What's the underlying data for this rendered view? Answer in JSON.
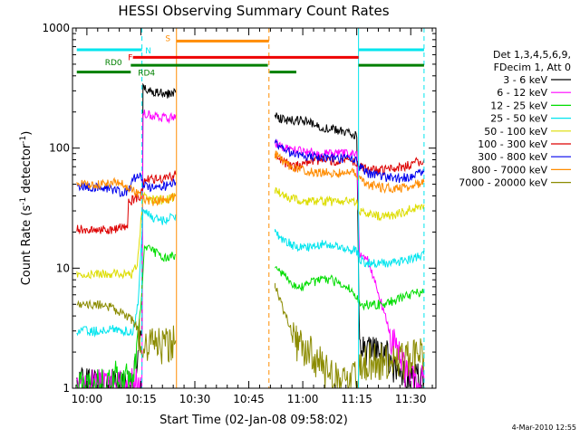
{
  "chart_data": {
    "type": "line",
    "title": "HESSI Observing Summary Count Rates",
    "xlabel": "Start Time (02-Jan-08 09:58:02)",
    "ylabel_main": "Count Rate (s",
    "ylabel_sup1": "-1",
    "ylabel_mid": " detector",
    "ylabel_sup2": "-1",
    "ylabel_end": ")",
    "yscale": "log",
    "ylim": [
      1,
      1000
    ],
    "xlim_minutes": [
      -4,
      97
    ],
    "x_tick_labels": [
      "10:00",
      "10:15",
      "10:30",
      "10:45",
      "11:00",
      "11:15",
      "11:30"
    ],
    "x_tick_minutes": [
      0,
      15,
      30,
      45,
      60,
      75,
      90
    ],
    "y_tick_labels": [
      "1",
      "10",
      "100",
      "1000"
    ],
    "y_tick_values": [
      1,
      10,
      100,
      1000
    ],
    "legend_header": [
      "Det 1,3,4,5,6,9,",
      "FDecim 1, Att 0"
    ],
    "legend_position": "right",
    "footer_date": "4-Mar-2010 12:55",
    "flag_labels": {
      "N": "N",
      "S": "S",
      "F": "F",
      "RD0": "RD0",
      "RD4": "RD4"
    },
    "colors": {
      "frame": "#000000",
      "text": "#000000",
      "N": "#00e5ee",
      "S": "#ff8c00",
      "F": "#ee0000",
      "RD": "#008000"
    },
    "verticals": [
      {
        "minute": 15.3,
        "color": "#00e5ee",
        "style": "dashed"
      },
      {
        "minute": 24.9,
        "color": "#ff8c00",
        "style": "solid"
      },
      {
        "minute": 50.6,
        "color": "#ff8c00",
        "style": "dashed"
      },
      {
        "minute": 75.5,
        "color": "#00e5ee",
        "style": "solid"
      },
      {
        "minute": 93.7,
        "color": "#00e5ee",
        "style": "dashed"
      }
    ],
    "flags": [
      {
        "name": "N",
        "y": 660,
        "color": "#00e5ee",
        "segments": [
          [
            -2.8,
            15.3
          ],
          [
            75.5,
            93.7
          ]
        ]
      },
      {
        "name": "S",
        "y": 780,
        "color": "#ff8c00",
        "segments": [
          [
            24.9,
            50.6
          ]
        ]
      },
      {
        "name": "F",
        "y": 570,
        "color": "#ee0000",
        "segments": [
          [
            12.8,
            75.5
          ]
        ]
      },
      {
        "name": "RD0",
        "y": 490,
        "color": "#008000",
        "segments": [
          [
            12.2,
            50.3
          ],
          [
            75.5,
            93.7
          ]
        ]
      },
      {
        "name": "RD4",
        "y": 430,
        "color": "#008000",
        "segments": [
          [
            -2.8,
            12.2
          ],
          [
            50.8,
            58.2
          ]
        ]
      }
    ],
    "series": [
      {
        "name": "3 - 6 keV",
        "color": "#000000",
        "points": [
          [
            -2.8,
            1.1
          ],
          [
            12.8,
            1.1
          ],
          [
            14.2,
            2
          ],
          [
            15.3,
            2.5
          ],
          [
            15.6,
            320
          ],
          [
            17,
            300
          ],
          [
            20,
            290
          ],
          [
            22,
            280
          ],
          [
            24,
            290
          ],
          [
            24.7,
            290
          ],
          [
            52.3,
            190
          ],
          [
            55,
            170
          ],
          [
            60,
            170
          ],
          [
            65,
            150
          ],
          [
            70,
            140
          ],
          [
            75,
            130
          ],
          [
            75.8,
            2
          ],
          [
            78,
            2
          ],
          [
            80,
            2
          ],
          [
            83,
            2
          ],
          [
            85,
            1.6
          ],
          [
            87,
            1.3
          ],
          [
            92,
            1.2
          ],
          [
            93.7,
            1.2
          ]
        ]
      },
      {
        "name": "6 - 12 keV",
        "color": "#ff00ff",
        "points": [
          [
            -2.8,
            1.05
          ],
          [
            15.3,
            1.1
          ],
          [
            15.6,
            200
          ],
          [
            17,
            190
          ],
          [
            20,
            185
          ],
          [
            23,
            180
          ],
          [
            24.7,
            190
          ],
          [
            52.3,
            110
          ],
          [
            55,
            100
          ],
          [
            60,
            95
          ],
          [
            65,
            90
          ],
          [
            70,
            90
          ],
          [
            75,
            90
          ],
          [
            75.8,
            13
          ],
          [
            78,
            12
          ],
          [
            80,
            8
          ],
          [
            84,
            3
          ],
          [
            88,
            1.5
          ],
          [
            92,
            1.1
          ],
          [
            93.7,
            1.2
          ]
        ]
      },
      {
        "name": "12 - 25 keV",
        "color": "#00dd00",
        "points": [
          [
            -2.8,
            1.1
          ],
          [
            7,
            1.1
          ],
          [
            8,
            1.5
          ],
          [
            9,
            1.1
          ],
          [
            11,
            1.2
          ],
          [
            12.8,
            1.1
          ],
          [
            14.2,
            3
          ],
          [
            15.3,
            6
          ],
          [
            16,
            15
          ],
          [
            18,
            14
          ],
          [
            20,
            13
          ],
          [
            22,
            12
          ],
          [
            24.7,
            13
          ],
          [
            52.3,
            10
          ],
          [
            54,
            9
          ],
          [
            56,
            8
          ],
          [
            58,
            7
          ],
          [
            60,
            7
          ],
          [
            62,
            7.5
          ],
          [
            65,
            8
          ],
          [
            68,
            8
          ],
          [
            70,
            7.5
          ],
          [
            72,
            7
          ],
          [
            74,
            6.5
          ],
          [
            75.8,
            5
          ],
          [
            78,
            5
          ],
          [
            82,
            5
          ],
          [
            86,
            5.5
          ],
          [
            90,
            6
          ],
          [
            93.7,
            6.5
          ]
        ]
      },
      {
        "name": "25 - 50 keV",
        "color": "#00e5ee",
        "points": [
          [
            -2.8,
            3
          ],
          [
            2,
            3
          ],
          [
            5,
            3
          ],
          [
            8,
            3.2
          ],
          [
            10,
            3
          ],
          [
            12.8,
            3
          ],
          [
            14.2,
            5
          ],
          [
            15.6,
            30
          ],
          [
            17,
            28
          ],
          [
            19,
            26
          ],
          [
            21,
            25
          ],
          [
            23,
            26
          ],
          [
            24.7,
            28
          ],
          [
            52.3,
            20
          ],
          [
            55,
            17
          ],
          [
            58,
            15
          ],
          [
            62,
            15
          ],
          [
            66,
            16
          ],
          [
            70,
            15
          ],
          [
            75,
            14
          ],
          [
            75.8,
            12
          ],
          [
            78,
            11
          ],
          [
            82,
            11
          ],
          [
            86,
            11
          ],
          [
            90,
            12
          ],
          [
            93.7,
            13
          ]
        ]
      },
      {
        "name": "50 - 100 keV",
        "color": "#dddd00",
        "points": [
          [
            -2.8,
            9
          ],
          [
            2,
            9
          ],
          [
            5,
            9
          ],
          [
            10,
            9
          ],
          [
            12.8,
            9
          ],
          [
            14.2,
            12
          ],
          [
            15.6,
            40
          ],
          [
            17,
            38
          ],
          [
            19,
            37
          ],
          [
            21,
            37
          ],
          [
            23,
            38
          ],
          [
            24.7,
            40
          ],
          [
            52.3,
            45
          ],
          [
            55,
            40
          ],
          [
            58,
            37
          ],
          [
            60,
            36
          ],
          [
            65,
            36
          ],
          [
            70,
            36
          ],
          [
            75,
            36
          ],
          [
            75.8,
            30
          ],
          [
            78,
            28
          ],
          [
            82,
            27
          ],
          [
            86,
            28
          ],
          [
            90,
            31
          ],
          [
            93.7,
            34
          ]
        ]
      },
      {
        "name": "100 - 300 keV",
        "color": "#dd0000",
        "points": [
          [
            -2.8,
            21
          ],
          [
            2,
            21
          ],
          [
            5,
            21
          ],
          [
            8,
            21
          ],
          [
            10,
            22
          ],
          [
            11.3,
            22
          ],
          [
            11.6,
            35
          ],
          [
            13,
            38
          ],
          [
            15,
            40
          ],
          [
            16,
            55
          ],
          [
            18,
            56
          ],
          [
            20,
            55
          ],
          [
            22,
            56
          ],
          [
            24.7,
            60
          ],
          [
            52.3,
            85
          ],
          [
            55,
            75
          ],
          [
            58,
            70
          ],
          [
            60,
            75
          ],
          [
            65,
            80
          ],
          [
            70,
            78
          ],
          [
            75,
            77
          ],
          [
            75.8,
            70
          ],
          [
            80,
            65
          ],
          [
            84,
            66
          ],
          [
            88,
            70
          ],
          [
            93.7,
            80
          ]
        ]
      },
      {
        "name": "300 - 800 keV",
        "color": "#0000ee",
        "points": [
          [
            -2.8,
            48
          ],
          [
            2,
            48
          ],
          [
            5,
            47
          ],
          [
            8,
            45
          ],
          [
            10,
            42
          ],
          [
            12,
            46
          ],
          [
            13,
            56
          ],
          [
            15,
            60
          ],
          [
            15.6,
            50
          ],
          [
            17,
            48
          ],
          [
            19,
            47
          ],
          [
            21,
            48
          ],
          [
            23,
            49
          ],
          [
            24.7,
            52
          ],
          [
            52.3,
            110
          ],
          [
            55,
            95
          ],
          [
            58,
            90
          ],
          [
            60,
            85
          ],
          [
            65,
            85
          ],
          [
            70,
            82
          ],
          [
            75,
            80
          ],
          [
            75.8,
            70
          ],
          [
            78,
            62
          ],
          [
            82,
            58
          ],
          [
            86,
            56
          ],
          [
            90,
            58
          ],
          [
            93.7,
            63
          ]
        ]
      },
      {
        "name": "800 - 7000 keV",
        "color": "#ff8c00",
        "points": [
          [
            -2.8,
            50
          ],
          [
            2,
            50
          ],
          [
            5,
            50
          ],
          [
            8,
            52
          ],
          [
            10,
            50
          ],
          [
            11.3,
            48
          ],
          [
            13,
            44
          ],
          [
            15,
            42
          ],
          [
            15.6,
            38
          ],
          [
            17,
            36
          ],
          [
            19,
            36
          ],
          [
            21,
            37
          ],
          [
            23,
            38
          ],
          [
            24.7,
            40
          ],
          [
            52.3,
            90
          ],
          [
            55,
            75
          ],
          [
            58,
            68
          ],
          [
            60,
            65
          ],
          [
            65,
            63
          ],
          [
            70,
            62
          ],
          [
            75,
            62
          ],
          [
            75.8,
            55
          ],
          [
            78,
            50
          ],
          [
            82,
            47
          ],
          [
            86,
            46
          ],
          [
            90,
            48
          ],
          [
            93.7,
            52
          ]
        ]
      },
      {
        "name": "7000 - 20000 keV",
        "color": "#8b8b00",
        "points": [
          [
            -2.8,
            5
          ],
          [
            2,
            5
          ],
          [
            5,
            5
          ],
          [
            8,
            4.5
          ],
          [
            10,
            4.2
          ],
          [
            12,
            3.8
          ],
          [
            12.8,
            3.6
          ],
          [
            14.2,
            3
          ],
          [
            15.6,
            2.5
          ],
          [
            17,
            2.5
          ],
          [
            20,
            2.4
          ],
          [
            23,
            2.5
          ],
          [
            24.7,
            2.5
          ],
          [
            52.3,
            7.5
          ],
          [
            54,
            5
          ],
          [
            56,
            3.5
          ],
          [
            58,
            2.5
          ],
          [
            60,
            2.4
          ],
          [
            62,
            2.1
          ],
          [
            64,
            1.8
          ],
          [
            66,
            1.5
          ],
          [
            68,
            1.3
          ],
          [
            70,
            1.25
          ],
          [
            75.5,
            1.25
          ],
          [
            75.8,
            1.5
          ],
          [
            78,
            1.8
          ],
          [
            82,
            1.8
          ],
          [
            86,
            1.7
          ],
          [
            90,
            1.9
          ],
          [
            93.7,
            2
          ]
        ]
      }
    ]
  }
}
